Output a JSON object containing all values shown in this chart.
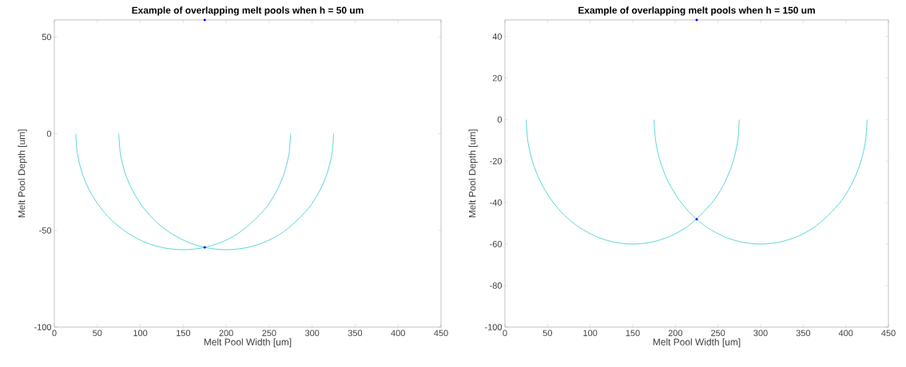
{
  "chart_data": [
    {
      "type": "line",
      "title": "Example of overlapping melt pools when h = 50 um",
      "xlabel": "Melt Pool Width [um]",
      "ylabel": "Melt Pool Depth [um]",
      "xlim": [
        0,
        450
      ],
      "ylim": [
        -100,
        58.8
      ],
      "xticks": [
        0,
        50,
        100,
        150,
        200,
        250,
        300,
        350,
        400,
        450
      ],
      "yticks": [
        -100,
        -50,
        0,
        50
      ],
      "grid": false,
      "series": [
        {
          "color": "#33cccc",
          "x": [
            25,
            26.9,
            32.5,
            41.7,
            54.2,
            69.6,
            87.5,
            107.2,
            128.3,
            150,
            171.7,
            192.8,
            212.5,
            229.6,
            245.8,
            258.3,
            267.5,
            273.1,
            275
          ],
          "values": [
            0,
            -10.4,
            -20.5,
            -30,
            -38.6,
            -46,
            -52,
            -56.4,
            -59.1,
            -60,
            -59.1,
            -56.4,
            -52,
            -46,
            -38.6,
            -30,
            -20.5,
            -10.4,
            0
          ]
        },
        {
          "color": "#33cccc",
          "x": [
            75,
            76.9,
            82.5,
            91.7,
            104.2,
            119.6,
            137.5,
            157.2,
            178.3,
            200,
            221.7,
            242.8,
            262.5,
            279.6,
            295.8,
            308.3,
            317.5,
            323.1,
            325
          ],
          "values": [
            0,
            -10.4,
            -20.5,
            -30,
            -38.6,
            -46,
            -52,
            -56.4,
            -59.1,
            -60,
            -59.1,
            -56.4,
            -52,
            -46,
            -38.6,
            -30,
            -20.5,
            -10.4,
            0
          ]
        },
        {
          "type": "scatter",
          "color": "#0000ff",
          "x": [
            175,
            175
          ],
          "values": [
            -58.8,
            58.8
          ]
        }
      ]
    },
    {
      "type": "line",
      "title": "Example of overlapping melt pools when h = 150 um",
      "xlabel": "Melt Pool Width [um]",
      "ylabel": "Melt Pool Depth [um]",
      "xlim": [
        0,
        450
      ],
      "ylim": [
        -100,
        48
      ],
      "xticks": [
        0,
        50,
        100,
        150,
        200,
        250,
        300,
        350,
        400,
        450
      ],
      "yticks": [
        -100,
        -80,
        -60,
        -40,
        -20,
        0,
        20,
        40
      ],
      "grid": false,
      "series": [
        {
          "color": "#33cccc",
          "x": [
            25,
            26.9,
            32.5,
            41.7,
            54.2,
            69.6,
            87.5,
            107.2,
            128.3,
            150,
            171.7,
            192.8,
            212.5,
            229.6,
            245.8,
            258.3,
            267.5,
            273.1,
            275
          ],
          "values": [
            0,
            -10.4,
            -20.5,
            -30,
            -38.6,
            -46,
            -52,
            -56.4,
            -59.1,
            -60,
            -59.1,
            -56.4,
            -52,
            -46,
            -38.6,
            -30,
            -20.5,
            -10.4,
            0
          ]
        },
        {
          "color": "#33cccc",
          "x": [
            175,
            176.9,
            182.5,
            191.7,
            204.2,
            219.6,
            237.5,
            257.2,
            278.3,
            300,
            321.7,
            342.8,
            362.5,
            379.6,
            395.8,
            408.3,
            417.5,
            423.1,
            425
          ],
          "values": [
            0,
            -10.4,
            -20.5,
            -30,
            -38.6,
            -46,
            -52,
            -56.4,
            -59.1,
            -60,
            -59.1,
            -56.4,
            -52,
            -46,
            -38.6,
            -30,
            -20.5,
            -10.4,
            0
          ]
        },
        {
          "type": "scatter",
          "color": "#0000ff",
          "x": [
            225,
            225
          ],
          "values": [
            -48,
            48
          ]
        }
      ]
    }
  ]
}
